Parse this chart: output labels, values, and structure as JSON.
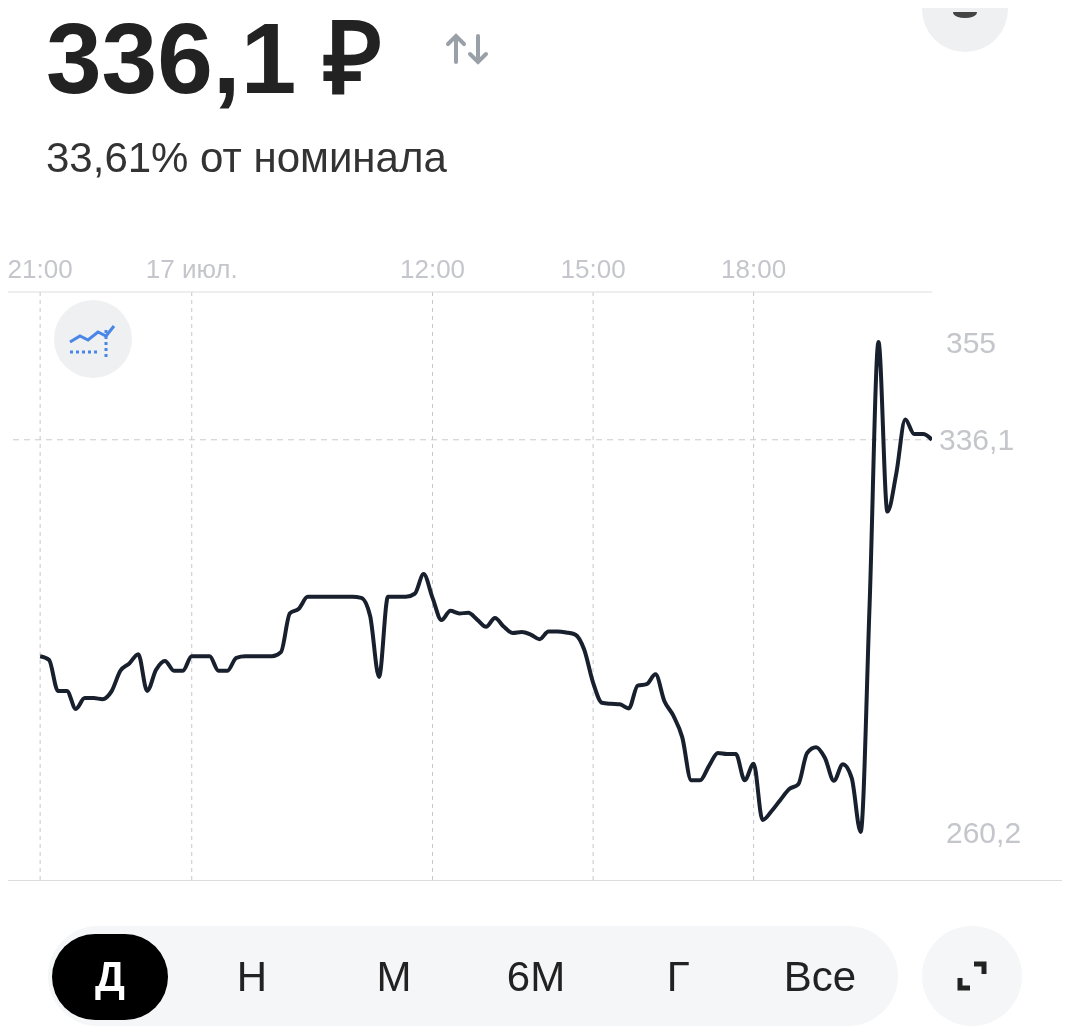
{
  "chart_data": {
    "type": "line",
    "title": "336,1 ₽",
    "subtitle": "33,61% от номинала",
    "categories": [
      "21:00",
      null,
      null,
      null,
      null,
      null,
      null,
      null,
      null,
      null,
      null,
      null,
      null,
      null,
      null,
      null,
      null,
      "17 июл.",
      null,
      null,
      null,
      null,
      null,
      null,
      null,
      null,
      null,
      null,
      null,
      null,
      null,
      null,
      null,
      null,
      null,
      null,
      null,
      null,
      null,
      null,
      null,
      null,
      null,
      null,
      "12:00",
      null,
      null,
      null,
      null,
      null,
      null,
      null,
      null,
      null,
      null,
      null,
      null,
      null,
      null,
      null,
      null,
      null,
      "15:00",
      null,
      null,
      null,
      null,
      null,
      null,
      null,
      null,
      null,
      null,
      null,
      null,
      null,
      null,
      null,
      null,
      null,
      "18:00",
      null,
      null,
      null,
      null,
      null,
      null,
      null,
      null,
      null,
      null,
      null,
      null,
      null,
      null,
      null,
      null,
      null,
      null,
      null,
      null
    ],
    "series": [
      {
        "color": "#18202e",
        "values": [
          294.2,
          293.5,
          287.5,
          287.5,
          284.0,
          286.1,
          286.1,
          285.9,
          287.4,
          291.4,
          292.8,
          294.6,
          287.5,
          291.6,
          293.3,
          291.4,
          291.4,
          294.2,
          294.2,
          294.2,
          291.4,
          291.4,
          293.9,
          294.2,
          294.2,
          294.2,
          294.2,
          295.0,
          302.5,
          303.4,
          305.7,
          305.7,
          305.7,
          305.7,
          305.7,
          305.7,
          305.5,
          302.0,
          290.2,
          305.7,
          305.7,
          305.7,
          306.3,
          310.1,
          305.5,
          301.2,
          303.0,
          302.5,
          302.6,
          301.3,
          299.9,
          301.6,
          299.9,
          298.7,
          298.9,
          298.4,
          297.5,
          299.0,
          299.0,
          298.8,
          298.4,
          295.5,
          289.1,
          285.2,
          285.0,
          284.9,
          284.1,
          288.5,
          288.8,
          290.7,
          285.5,
          282.7,
          278.5,
          270.2,
          270.2,
          273.0,
          275.5,
          275.3,
          275.3,
          270.2,
          273.4,
          262.5,
          264.2,
          266.4,
          268.5,
          269.4,
          275.5,
          276.6,
          274.5,
          270.1,
          273.3,
          270.6,
          260.2,
          304.0,
          355.0,
          322.2,
          329.6,
          340.0,
          337.2,
          337.2,
          336.1
        ]
      }
    ],
    "ylim": [
      250.9,
      364.7
    ],
    "yticks": [
      355,
      {
        "value": 260.2,
        "label": "260,2"
      }
    ],
    "ref_lines": [
      {
        "axis": "y",
        "value": 336.1,
        "label": "336,1",
        "color": "#cccccc",
        "line_style": "dashed"
      }
    ],
    "grid": "x",
    "marker": "none",
    "line_style": "solid",
    "annotations": [
      "Д",
      "Н",
      "М",
      "6М",
      "Г",
      "Все"
    ]
  }
}
